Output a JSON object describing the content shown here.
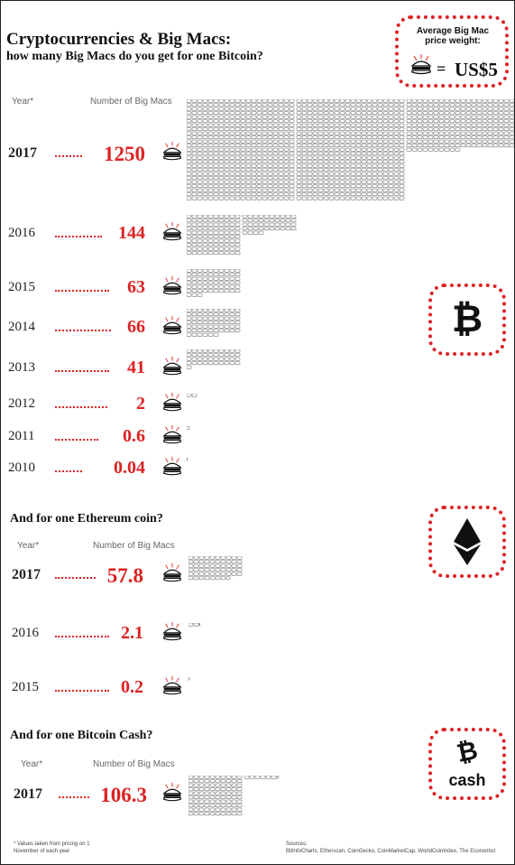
{
  "title": "Cryptocurrencies & Big Macs:",
  "subtitle": "how many Big Macs do you get for one Bitcoin?",
  "price_box": {
    "label": "Average Big Mac price weight:",
    "value": "US$5"
  },
  "col_headers": {
    "year": "Year*",
    "count": "Number of Big Macs"
  },
  "sections": [
    {
      "heading": "",
      "coin": "Bitcoin"
    },
    {
      "heading": "And for one Ethereum coin?",
      "coin": "Ethereum"
    },
    {
      "heading": "And for one Bitcoin Cash?",
      "coin": "Bitcoin Cash"
    }
  ],
  "cash_label": "cash",
  "footnote": "* Values taken from pricing on 1 November of each year",
  "sources_label": "Sources:",
  "sources": "BitInfoCharts, Etherscan, CoinGecko, CoinMarketCap, WorldCoinIndex, The Economist",
  "colors": {
    "accent": "#d22222",
    "icon_grey": "#777777"
  },
  "chart_data": [
    {
      "type": "bar",
      "title": "Cryptocurrencies & Big Macs: how many Big Macs do you get for one Bitcoin?",
      "ylabel": "Number of Big Macs",
      "categories": [
        "2017",
        "2016",
        "2015",
        "2014",
        "2013",
        "2012",
        "2011",
        "2010"
      ],
      "labels": [
        "1250",
        "144",
        "63",
        "66",
        "41",
        "2",
        "0.6",
        "0.04"
      ],
      "values": [
        1250,
        144,
        63,
        66,
        41,
        2,
        0.6,
        0.04
      ]
    },
    {
      "type": "bar",
      "title": "And for one Ethereum coin?",
      "ylabel": "Number of Big Macs",
      "categories": [
        "2017",
        "2016",
        "2015"
      ],
      "labels": [
        "57.8",
        "2.1",
        "0.2"
      ],
      "values": [
        57.8,
        2.1,
        0.2
      ]
    },
    {
      "type": "bar",
      "title": "And for one Bitcoin Cash?",
      "ylabel": "Number of Big Macs",
      "categories": [
        "2017"
      ],
      "labels": [
        "106.3"
      ],
      "values": [
        106.3
      ]
    }
  ]
}
